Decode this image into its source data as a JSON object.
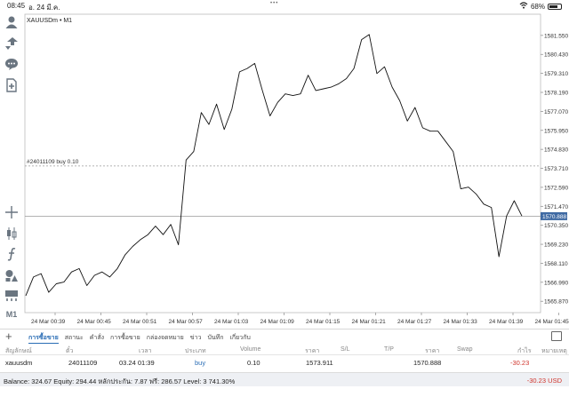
{
  "status_bar": {
    "time": "08:45",
    "date": "อ. 24 มี.ค.",
    "dots": "•••",
    "battery": "68%"
  },
  "chart": {
    "symbol_label": "XAUUSDm • M1",
    "order_line_label": "#24011109 buy 0.10",
    "current_price_label": "1570.888",
    "colors": {
      "line": "#111111",
      "price_tag": "#3f6aa3",
      "grid": "#e4e4e4"
    }
  },
  "chart_data": {
    "type": "line",
    "title": "",
    "xlabel": "",
    "ylabel": "",
    "ylim": [
      1565.2,
      1582.8
    ],
    "yticks": [
      "1581.550",
      "1580.430",
      "1579.310",
      "1578.190",
      "1577.070",
      "1575.950",
      "1574.830",
      "1573.710",
      "1572.590",
      "1571.470",
      "1570.350",
      "1569.230",
      "1568.110",
      "1566.990",
      "1565.870"
    ],
    "xticks": [
      "24 Mar 00:39",
      "24 Mar 00:45",
      "24 Mar 00:51",
      "24 Mar 00:57",
      "24 Mar 01:03",
      "24 Mar 01:09",
      "24 Mar 01:15",
      "24 Mar 01:21",
      "24 Mar 01:27",
      "24 Mar 01:33",
      "24 Mar 01:39",
      "24 Mar 01:45"
    ],
    "series": [
      {
        "values": [
          1566.2,
          1567.3,
          1567.5,
          1566.4,
          1566.9,
          1567.0,
          1567.6,
          1567.8,
          1566.8,
          1567.4,
          1567.6,
          1567.3,
          1567.8,
          1568.6,
          1569.1,
          1569.5,
          1569.8,
          1570.3,
          1569.8,
          1570.4,
          1569.2,
          1574.2,
          1574.7,
          1577.0,
          1576.3,
          1577.5,
          1576.0,
          1577.2,
          1579.4,
          1579.6,
          1579.9,
          1578.3,
          1576.8,
          1577.6,
          1578.1,
          1578.0,
          1578.1,
          1579.2,
          1578.3,
          1578.4,
          1578.5,
          1578.7,
          1579.0,
          1579.6,
          1581.3,
          1581.6,
          1579.3,
          1579.7,
          1578.5,
          1577.7,
          1576.5,
          1577.3,
          1576.1,
          1575.9,
          1575.9,
          1575.3,
          1574.7,
          1572.5,
          1572.6,
          1572.2,
          1571.6,
          1571.4,
          1568.5,
          1570.9,
          1571.8,
          1570.9
        ]
      }
    ],
    "order_line_price": 1573.85,
    "current_price": 1570.888,
    "grid": false
  },
  "left_toolbar": {
    "items": [
      "user-icon",
      "trade-arrows-icon",
      "chat-icon",
      "add-document-icon",
      "crosshair-icon",
      "candlestick-icon",
      "function-icon",
      "shapes-icon",
      "layout-icon"
    ],
    "timeframe": "M1"
  },
  "toolbar": {
    "tabs": [
      "การซื้อขาย",
      "สถานะ",
      "คำสั่ง",
      "การซื้อขาย",
      "กล่องจดหมาย",
      "ข่าว",
      "บันทึก",
      "เกี่ยวกับ"
    ]
  },
  "table": {
    "headers": [
      "สัญลักษณ์",
      "ตั๋ว",
      "เวลา",
      "ประเภท",
      "Volume",
      "ราคา",
      "S/L",
      "T/P",
      "ราคา",
      "Swap",
      "กำไร",
      "หมายเหตุ"
    ],
    "row": {
      "symbol": "xauusdm",
      "ticket": "24011109",
      "time": "03.24 01:39",
      "type": "buy",
      "volume": "0.10",
      "open_price": "1573.911",
      "sl": "",
      "tp": "",
      "current_price": "1570.888",
      "swap": "",
      "profit": "-30.23",
      "comment": ""
    }
  },
  "balance_bar": {
    "summary": "Balance: 324.67 Equity: 294.44 หลักประกัน: 7.87 ฟรี: 286.57 Level: 3 741.30%",
    "profit": "-30.23",
    "currency": "USD"
  }
}
